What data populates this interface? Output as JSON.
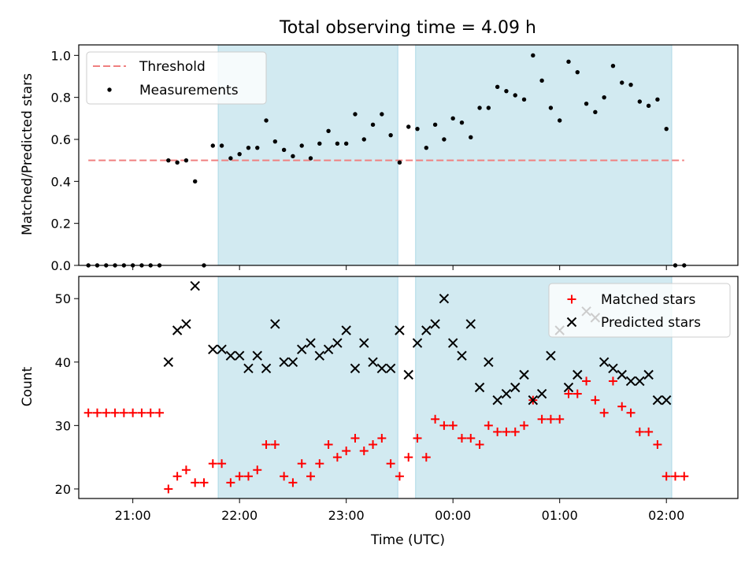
{
  "chart_data": [
    {
      "type": "scatter",
      "title": "Total observing time = 4.09 h",
      "xlabel": "",
      "ylabel": "Matched/Predicted stars",
      "xlim": [
        "20:35",
        "23:59+02:18"
      ],
      "ylim": [
        0,
        1.05
      ],
      "yticks": [
        "0.0",
        "0.2",
        "0.4",
        "0.6",
        "0.8",
        "1.0"
      ],
      "legend_position": "upper-left",
      "threshold": {
        "name": "Threshold",
        "value": 0.5,
        "color": "#f08080",
        "x_start": "20:35",
        "x_end": "02:10"
      },
      "shaded_periods": [
        {
          "start": "21:48",
          "end": "23:29"
        },
        {
          "start": "23:39",
          "end": "02:03"
        }
      ],
      "shade_color": "#add8e6",
      "series": [
        {
          "name": "Measurements",
          "color": "#000000",
          "marker": "dot",
          "points": [
            [
              "20:35",
              0
            ],
            [
              "20:40",
              0
            ],
            [
              "20:45",
              0
            ],
            [
              "20:50",
              0
            ],
            [
              "20:55",
              0
            ],
            [
              "21:00",
              0
            ],
            [
              "21:05",
              0
            ],
            [
              "21:10",
              0
            ],
            [
              "21:15",
              0
            ],
            [
              "21:20",
              0.5
            ],
            [
              "21:25",
              0.49
            ],
            [
              "21:30",
              0.5
            ],
            [
              "21:35",
              0.4
            ],
            [
              "21:40",
              0
            ],
            [
              "21:45",
              0.57
            ],
            [
              "21:50",
              0.57
            ],
            [
              "21:55",
              0.51
            ],
            [
              "22:00",
              0.53
            ],
            [
              "22:05",
              0.56
            ],
            [
              "22:10",
              0.56
            ],
            [
              "22:15",
              0.69
            ],
            [
              "22:20",
              0.59
            ],
            [
              "22:25",
              0.55
            ],
            [
              "22:30",
              0.52
            ],
            [
              "22:35",
              0.57
            ],
            [
              "22:40",
              0.51
            ],
            [
              "22:45",
              0.58
            ],
            [
              "22:50",
              0.64
            ],
            [
              "22:55",
              0.58
            ],
            [
              "23:00",
              0.58
            ],
            [
              "23:05",
              0.72
            ],
            [
              "23:10",
              0.6
            ],
            [
              "23:15",
              0.67
            ],
            [
              "23:20",
              0.72
            ],
            [
              "23:25",
              0.62
            ],
            [
              "23:30",
              0.49
            ],
            [
              "23:35",
              0.66
            ],
            [
              "23:40",
              0.65
            ],
            [
              "23:45",
              0.56
            ],
            [
              "23:50",
              0.67
            ],
            [
              "23:55",
              0.6
            ],
            [
              "00:00",
              0.7
            ],
            [
              "00:05",
              0.68
            ],
            [
              "00:10",
              0.61
            ],
            [
              "00:15",
              0.75
            ],
            [
              "00:20",
              0.75
            ],
            [
              "00:25",
              0.85
            ],
            [
              "00:30",
              0.83
            ],
            [
              "00:35",
              0.81
            ],
            [
              "00:40",
              0.79
            ],
            [
              "00:45",
              1.0
            ],
            [
              "00:50",
              0.88
            ],
            [
              "00:55",
              0.75
            ],
            [
              "01:00",
              0.69
            ],
            [
              "01:05",
              0.97
            ],
            [
              "01:10",
              0.92
            ],
            [
              "01:15",
              0.77
            ],
            [
              "01:20",
              0.73
            ],
            [
              "01:25",
              0.8
            ],
            [
              "01:30",
              0.95
            ],
            [
              "01:35",
              0.87
            ],
            [
              "01:40",
              0.86
            ],
            [
              "01:45",
              0.78
            ],
            [
              "01:50",
              0.76
            ],
            [
              "01:55",
              0.79
            ],
            [
              "02:00",
              0.65
            ],
            [
              "02:05",
              0
            ],
            [
              "02:10",
              0
            ]
          ]
        }
      ]
    },
    {
      "type": "scatter",
      "title": "",
      "xlabel": "Time (UTC)",
      "ylabel": "Count",
      "ylim": [
        18.5,
        53.5
      ],
      "yticks": [
        "20",
        "30",
        "40",
        "50"
      ],
      "xticks": [
        "21:00",
        "22:00",
        "23:00",
        "00:00",
        "01:00",
        "02:00"
      ],
      "legend_position": "upper-right",
      "series": [
        {
          "name": "Matched stars",
          "color": "#ff0000",
          "marker": "plus",
          "points": [
            [
              "20:35",
              32
            ],
            [
              "20:40",
              32
            ],
            [
              "20:45",
              32
            ],
            [
              "20:50",
              32
            ],
            [
              "20:55",
              32
            ],
            [
              "21:00",
              32
            ],
            [
              "21:05",
              32
            ],
            [
              "21:10",
              32
            ],
            [
              "21:15",
              32
            ],
            [
              "21:20",
              20
            ],
            [
              "21:25",
              22
            ],
            [
              "21:30",
              23
            ],
            [
              "21:35",
              21
            ],
            [
              "21:40",
              21
            ],
            [
              "21:45",
              24
            ],
            [
              "21:50",
              24
            ],
            [
              "21:55",
              21
            ],
            [
              "22:00",
              22
            ],
            [
              "22:05",
              22
            ],
            [
              "22:10",
              23
            ],
            [
              "22:15",
              27
            ],
            [
              "22:20",
              27
            ],
            [
              "22:25",
              22
            ],
            [
              "22:30",
              21
            ],
            [
              "22:35",
              24
            ],
            [
              "22:40",
              22
            ],
            [
              "22:45",
              24
            ],
            [
              "22:50",
              27
            ],
            [
              "22:55",
              25
            ],
            [
              "23:00",
              26
            ],
            [
              "23:05",
              28
            ],
            [
              "23:10",
              26
            ],
            [
              "23:15",
              27
            ],
            [
              "23:20",
              28
            ],
            [
              "23:25",
              24
            ],
            [
              "23:30",
              22
            ],
            [
              "23:35",
              25
            ],
            [
              "23:40",
              28
            ],
            [
              "23:45",
              25
            ],
            [
              "23:50",
              31
            ],
            [
              "23:55",
              30
            ],
            [
              "00:00",
              30
            ],
            [
              "00:05",
              28
            ],
            [
              "00:10",
              28
            ],
            [
              "00:15",
              27
            ],
            [
              "00:20",
              30
            ],
            [
              "00:25",
              29
            ],
            [
              "00:30",
              29
            ],
            [
              "00:35",
              29
            ],
            [
              "00:40",
              30
            ],
            [
              "00:45",
              34
            ],
            [
              "00:50",
              31
            ],
            [
              "00:55",
              31
            ],
            [
              "01:00",
              31
            ],
            [
              "01:05",
              35
            ],
            [
              "01:10",
              35
            ],
            [
              "01:15",
              37
            ],
            [
              "01:20",
              34
            ],
            [
              "01:25",
              32
            ],
            [
              "01:30",
              37
            ],
            [
              "01:35",
              33
            ],
            [
              "01:40",
              32
            ],
            [
              "01:45",
              29
            ],
            [
              "01:50",
              29
            ],
            [
              "01:55",
              27
            ],
            [
              "02:00",
              22
            ],
            [
              "02:05",
              22
            ],
            [
              "02:10",
              22
            ]
          ]
        },
        {
          "name": "Predicted stars",
          "color": "#000000",
          "marker": "x",
          "points": [
            [
              "21:20",
              40
            ],
            [
              "21:25",
              45
            ],
            [
              "21:30",
              46
            ],
            [
              "21:35",
              52
            ],
            [
              "21:45",
              42
            ],
            [
              "21:50",
              42
            ],
            [
              "21:55",
              41
            ],
            [
              "22:00",
              41
            ],
            [
              "22:05",
              39
            ],
            [
              "22:10",
              41
            ],
            [
              "22:15",
              39
            ],
            [
              "22:20",
              46
            ],
            [
              "22:25",
              40
            ],
            [
              "22:30",
              40
            ],
            [
              "22:35",
              42
            ],
            [
              "22:40",
              43
            ],
            [
              "22:45",
              41
            ],
            [
              "22:50",
              42
            ],
            [
              "22:55",
              43
            ],
            [
              "23:00",
              45
            ],
            [
              "23:05",
              39
            ],
            [
              "23:10",
              43
            ],
            [
              "23:15",
              40
            ],
            [
              "23:20",
              39
            ],
            [
              "23:25",
              39
            ],
            [
              "23:30",
              45
            ],
            [
              "23:35",
              38
            ],
            [
              "23:40",
              43
            ],
            [
              "23:45",
              45
            ],
            [
              "23:50",
              46
            ],
            [
              "23:55",
              50
            ],
            [
              "00:00",
              43
            ],
            [
              "00:05",
              41
            ],
            [
              "00:10",
              46
            ],
            [
              "00:15",
              36
            ],
            [
              "00:20",
              40
            ],
            [
              "00:25",
              34
            ],
            [
              "00:30",
              35
            ],
            [
              "00:35",
              36
            ],
            [
              "00:40",
              38
            ],
            [
              "00:45",
              34
            ],
            [
              "00:50",
              35
            ],
            [
              "00:55",
              41
            ],
            [
              "01:00",
              45
            ],
            [
              "01:05",
              36
            ],
            [
              "01:10",
              38
            ],
            [
              "01:15",
              48
            ],
            [
              "01:20",
              47
            ],
            [
              "01:25",
              40
            ],
            [
              "01:30",
              39
            ],
            [
              "01:35",
              38
            ],
            [
              "01:40",
              37
            ],
            [
              "01:45",
              37
            ],
            [
              "01:50",
              38
            ],
            [
              "01:55",
              34
            ],
            [
              "02:00",
              34
            ]
          ]
        }
      ]
    }
  ]
}
